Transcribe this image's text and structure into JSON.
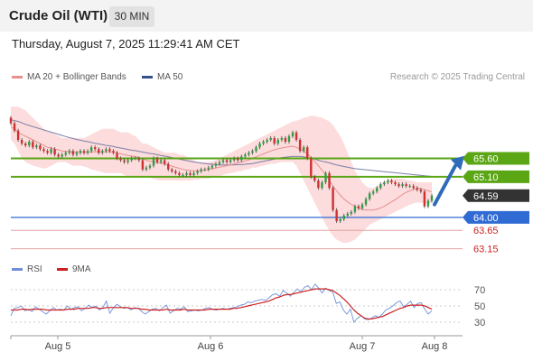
{
  "header": {
    "title": "Crude Oil (WTI)",
    "interval": "30 MIN"
  },
  "timestamp": "Thursday, August 7, 2025 11:29:41 AM CET",
  "legend": {
    "ma20": "MA 20 + Bollinger Bands",
    "ma50": "MA 50",
    "rsi": "RSI",
    "rsi_ma": "9MA"
  },
  "credit": "Research © 2025 Trading Central",
  "colors": {
    "bollinger": "#fbd0d0",
    "ma20": "#e88f8f",
    "ma50": "#7a7fa8",
    "resistance": "#5aa614",
    "support": "#2f6bd3",
    "target": "#e4a0a0",
    "arrow": "#2f6bb8",
    "rsi": "#6f8fd8",
    "rsi_ma": "#cc2222"
  },
  "chart_data": [
    {
      "type": "candlestick",
      "x_ticks": [
        "Aug 5",
        "Aug 6",
        "Aug 7",
        "Aug 8"
      ],
      "ylim": [
        62.8,
        67.2
      ],
      "levels": [
        {
          "value": 65.6,
          "label": "65.60",
          "kind": "resistance"
        },
        {
          "value": 65.1,
          "label": "65.10",
          "kind": "resistance"
        },
        {
          "value": 64.59,
          "label": "64.59",
          "kind": "last"
        },
        {
          "value": 64.0,
          "label": "64.00",
          "kind": "pivot"
        },
        {
          "value": 63.65,
          "label": "63.65",
          "kind": "target"
        },
        {
          "value": 63.15,
          "label": "63.15",
          "kind": "target"
        }
      ],
      "close": [
        66.55,
        66.35,
        66.1,
        66.0,
        65.95,
        66.05,
        65.9,
        65.95,
        65.85,
        65.8,
        65.75,
        65.85,
        65.7,
        65.65,
        65.7,
        65.75,
        65.8,
        65.7,
        65.75,
        65.8,
        65.75,
        65.8,
        65.9,
        65.85,
        65.75,
        65.8,
        65.85,
        65.8,
        65.75,
        65.6,
        65.55,
        65.5,
        65.55,
        65.6,
        65.6,
        65.55,
        65.3,
        65.35,
        65.4,
        65.6,
        65.5,
        65.55,
        65.45,
        65.3,
        65.25,
        65.2,
        65.15,
        65.15,
        65.2,
        65.15,
        65.2,
        65.25,
        65.3,
        65.3,
        65.35,
        65.4,
        65.45,
        65.5,
        65.55,
        65.5,
        65.55,
        65.6,
        65.55,
        65.65,
        65.7,
        65.75,
        65.8,
        65.9,
        66.0,
        66.05,
        66.1,
        66.15,
        66.0,
        66.1,
        66.15,
        66.05,
        66.2,
        66.3,
        66.1,
        65.8,
        65.9,
        65.6,
        65.1,
        65.0,
        64.8,
        64.95,
        65.2,
        64.8,
        64.2,
        63.9,
        63.95,
        64.05,
        64.1,
        64.15,
        64.3,
        64.25,
        64.35,
        64.5,
        64.65,
        64.7,
        64.8,
        64.9,
        64.95,
        65.0,
        64.95,
        64.9,
        64.85,
        64.9,
        64.85,
        64.85,
        64.8,
        64.75,
        64.7,
        64.3,
        64.45,
        64.59
      ],
      "ma20": [
        66.45,
        66.4,
        66.3,
        66.25,
        66.2,
        66.15,
        66.1,
        66.05,
        66.0,
        65.95,
        65.9,
        65.88,
        65.85,
        65.83,
        65.8,
        65.79,
        65.78,
        65.77,
        65.77,
        65.77,
        65.76,
        65.76,
        65.77,
        65.78,
        65.77,
        65.77,
        65.78,
        65.78,
        65.77,
        65.75,
        65.72,
        65.7,
        65.68,
        65.66,
        65.65,
        65.62,
        65.58,
        65.55,
        65.52,
        65.51,
        65.49,
        65.47,
        65.45,
        65.42,
        65.39,
        65.36,
        65.33,
        65.3,
        65.28,
        65.27,
        65.26,
        65.26,
        65.27,
        65.28,
        65.3,
        65.32,
        65.34,
        65.36,
        65.38,
        65.4,
        65.42,
        65.45,
        65.48,
        65.5,
        65.53,
        65.56,
        65.6,
        65.64,
        65.68,
        65.72,
        65.76,
        65.8,
        65.83,
        65.86,
        65.88,
        65.9,
        65.92,
        65.93,
        65.9,
        65.85,
        65.8,
        65.72,
        65.62,
        65.52,
        65.4,
        65.28,
        65.15,
        65.0,
        64.85,
        64.72,
        64.6,
        64.5,
        64.42,
        64.35,
        64.3,
        64.25,
        64.22,
        64.2,
        64.2,
        64.2,
        64.22,
        64.26,
        64.3,
        64.36,
        64.42,
        64.48,
        64.55,
        64.62,
        64.68,
        64.72,
        64.76,
        64.78,
        64.78,
        64.75,
        64.72,
        64.7
      ],
      "ma50": [
        66.65,
        66.62,
        66.6,
        66.56,
        66.52,
        66.49,
        66.46,
        66.43,
        66.4,
        66.37,
        66.34,
        66.31,
        66.28,
        66.25,
        66.22,
        66.19,
        66.16,
        66.14,
        66.11,
        66.09,
        66.07,
        66.05,
        66.03,
        66.01,
        65.99,
        65.97,
        65.95,
        65.94,
        65.92,
        65.9,
        65.88,
        65.86,
        65.84,
        65.82,
        65.81,
        65.79,
        65.77,
        65.75,
        65.73,
        65.72,
        65.7,
        65.68,
        65.66,
        65.64,
        65.62,
        65.6,
        65.58,
        65.56,
        65.54,
        65.52,
        65.5,
        65.49,
        65.47,
        65.46,
        65.45,
        65.44,
        65.43,
        65.42,
        65.42,
        65.42,
        65.42,
        65.42,
        65.43,
        65.43,
        65.44,
        65.45,
        65.46,
        65.48,
        65.5,
        65.52,
        65.54,
        65.56,
        65.58,
        65.6,
        65.62,
        65.63,
        65.64,
        65.65,
        65.65,
        65.65,
        65.64,
        65.62,
        65.6,
        65.58,
        65.55,
        65.52,
        65.5,
        65.48,
        65.45,
        65.42,
        65.4,
        65.38,
        65.36,
        65.34,
        65.32,
        65.31,
        65.3,
        65.29,
        65.28,
        65.27,
        65.26,
        65.25,
        65.24,
        65.23,
        65.22,
        65.21,
        65.2,
        65.19,
        65.18,
        65.17,
        65.16,
        65.15,
        65.14,
        65.13,
        65.12,
        65.11
      ],
      "bb_upper": [
        67.0,
        67.0,
        67.0,
        66.95,
        66.9,
        66.8,
        66.7,
        66.6,
        66.5,
        66.4,
        66.35,
        66.3,
        66.25,
        66.2,
        66.15,
        66.15,
        66.15,
        66.15,
        66.15,
        66.15,
        66.15,
        66.2,
        66.25,
        66.3,
        66.35,
        66.4,
        66.4,
        66.4,
        66.4,
        66.35,
        66.3,
        66.3,
        66.3,
        66.25,
        66.2,
        66.1,
        66.0,
        66.0,
        65.95,
        65.9,
        65.85,
        65.8,
        65.75,
        65.75,
        65.75,
        65.75,
        65.7,
        65.7,
        65.65,
        65.6,
        65.55,
        65.5,
        65.5,
        65.5,
        65.5,
        65.52,
        65.55,
        65.6,
        65.65,
        65.7,
        65.75,
        65.8,
        65.85,
        65.9,
        65.95,
        66.0,
        66.05,
        66.1,
        66.15,
        66.2,
        66.25,
        66.3,
        66.35,
        66.4,
        66.45,
        66.5,
        66.55,
        66.6,
        66.62,
        66.65,
        66.7,
        66.72,
        66.75,
        66.75,
        66.72,
        66.7,
        66.65,
        66.6,
        66.5,
        66.35,
        66.2,
        66.0,
        65.75,
        65.5,
        65.25,
        65.1,
        64.95,
        64.85,
        64.8,
        64.8,
        64.85,
        64.9,
        64.95,
        65.0,
        65.05,
        65.05,
        65.05,
        65.05,
        65.02,
        65.0,
        64.98,
        64.95,
        64.95,
        64.95,
        64.95,
        64.95
      ],
      "bb_lower": [
        66.1,
        66.0,
        65.8,
        65.6,
        65.5,
        65.45,
        65.4,
        65.38,
        65.35,
        65.32,
        65.35,
        65.4,
        65.45,
        65.5,
        65.5,
        65.5,
        65.45,
        65.4,
        65.4,
        65.4,
        65.38,
        65.35,
        65.3,
        65.28,
        65.25,
        65.22,
        65.2,
        65.2,
        65.2,
        65.2,
        65.2,
        65.15,
        65.1,
        65.1,
        65.1,
        65.1,
        65.1,
        65.1,
        65.08,
        65.05,
        65.02,
        65.0,
        65.0,
        65.0,
        65.0,
        65.0,
        65.0,
        65.0,
        65.0,
        65.0,
        65.02,
        65.02,
        65.05,
        65.05,
        65.05,
        65.08,
        65.1,
        65.12,
        65.15,
        65.18,
        65.2,
        65.22,
        65.25,
        65.25,
        65.3,
        65.3,
        65.35,
        65.35,
        65.38,
        65.4,
        65.42,
        65.45,
        65.45,
        65.48,
        65.5,
        65.5,
        65.5,
        65.5,
        65.4,
        65.2,
        65.0,
        64.8,
        64.6,
        64.4,
        64.2,
        64.0,
        63.8,
        63.65,
        63.5,
        63.4,
        63.35,
        63.3,
        63.32,
        63.35,
        63.4,
        63.5,
        63.6,
        63.7,
        63.8,
        63.85,
        63.9,
        63.95,
        64.0,
        64.05,
        64.1,
        64.15,
        64.2,
        64.25,
        64.3,
        64.35,
        64.38,
        64.4,
        64.4,
        64.38,
        64.38,
        64.4
      ]
    },
    {
      "type": "line",
      "x_ticks": [
        "Aug 5",
        "Aug 6",
        "Aug 7",
        "Aug 8"
      ],
      "ylim": [
        20,
        80
      ],
      "y_ticks": [
        70,
        50,
        30
      ],
      "series": [
        {
          "name": "RSI",
          "values": [
            38,
            47,
            48,
            50,
            44,
            46,
            43,
            49,
            46,
            43,
            40,
            44,
            48,
            45,
            46,
            45,
            50,
            46,
            48,
            49,
            44,
            47,
            51,
            48,
            50,
            45,
            48,
            56,
            41,
            48,
            52,
            49,
            47,
            48,
            45,
            48,
            47,
            43,
            40,
            43,
            46,
            47,
            44,
            48,
            51,
            41,
            44,
            47,
            46,
            49,
            43,
            44,
            45,
            44,
            45,
            47,
            48,
            46,
            45,
            46,
            47,
            46,
            47,
            48,
            49,
            51,
            52,
            55,
            54,
            56,
            57,
            58,
            57,
            60,
            64,
            65,
            62,
            69,
            66,
            62,
            67,
            71,
            67,
            73,
            75,
            70,
            77,
            72,
            66,
            72,
            69,
            67,
            53,
            55,
            45,
            40,
            46,
            30,
            35,
            38,
            34,
            33,
            35,
            38,
            36,
            40,
            45,
            47,
            50,
            54,
            56,
            49,
            52,
            56,
            48,
            53,
            54,
            46,
            40,
            44
          ]
        },
        {
          "name": "9MA",
          "values": [
            45,
            45,
            45,
            46,
            46,
            45,
            46,
            46,
            46,
            46,
            45,
            45,
            45,
            45,
            45,
            45,
            46,
            46,
            46,
            47,
            47,
            47,
            47,
            48,
            48,
            47,
            47,
            48,
            48,
            48,
            48,
            48,
            48,
            48,
            47,
            47,
            47,
            46,
            46,
            45,
            45,
            45,
            45,
            45,
            46,
            45,
            45,
            45,
            45,
            46,
            45,
            45,
            45,
            45,
            45,
            45,
            46,
            46,
            46,
            46,
            46,
            46,
            46,
            47,
            47,
            48,
            49,
            50,
            51,
            52,
            53,
            54,
            55,
            56,
            58,
            60,
            61,
            63,
            64,
            64,
            65,
            66,
            67,
            68,
            69,
            70,
            71,
            71,
            71,
            71,
            70,
            69,
            66,
            63,
            59,
            55,
            50,
            45,
            41,
            38,
            35,
            34,
            34,
            35,
            36,
            37,
            39,
            41,
            43,
            45,
            47,
            48,
            50,
            51,
            51,
            51,
            51,
            50,
            48,
            46
          ]
        }
      ]
    }
  ]
}
